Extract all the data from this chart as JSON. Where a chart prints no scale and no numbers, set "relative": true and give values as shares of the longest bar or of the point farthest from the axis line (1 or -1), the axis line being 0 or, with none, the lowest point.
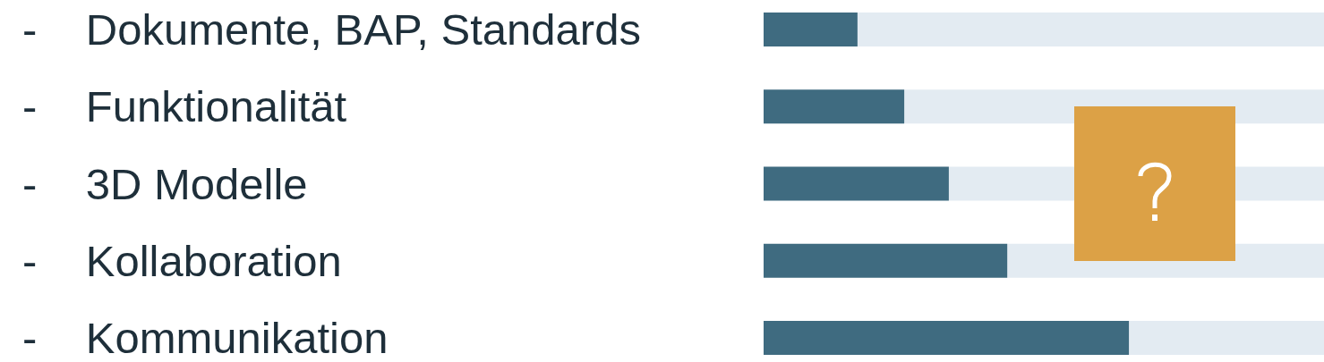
{
  "chart_data": {
    "type": "bar",
    "orientation": "horizontal",
    "relative": true,
    "categories": [
      "- Dokumente, BAP, Standards",
      "- Funktionalität",
      "- 3D Modelle",
      "- Kollaboration",
      "- Kommunikation"
    ],
    "values": [
      0.257,
      0.385,
      0.507,
      0.667,
      1
    ],
    "color": "#3f6b80",
    "grid": false,
    "legend": false
  }
}
